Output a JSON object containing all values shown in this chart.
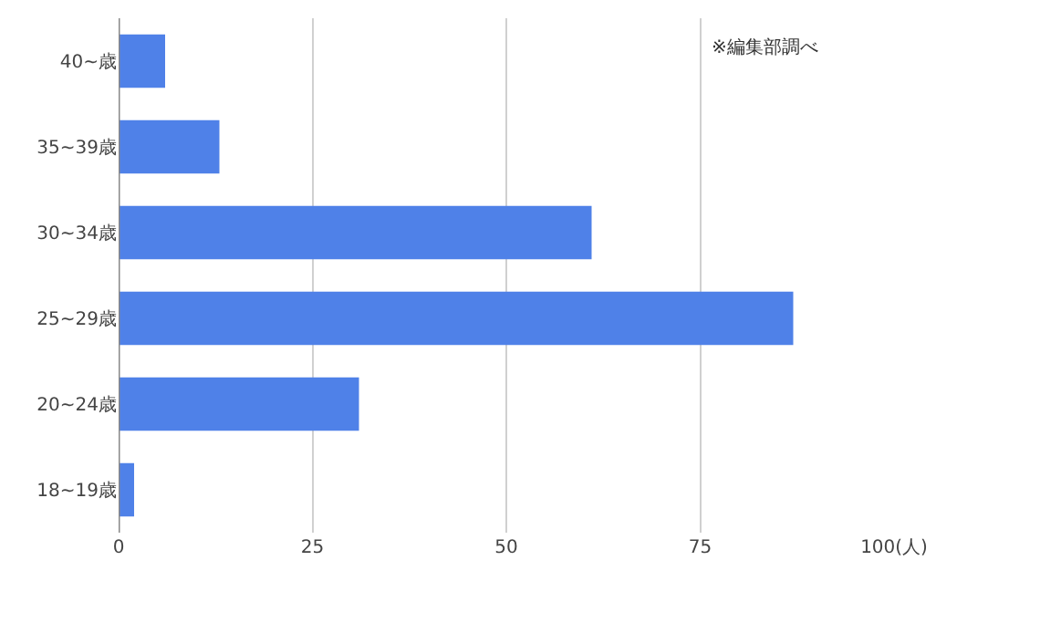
{
  "chart_data": {
    "type": "bar",
    "orientation": "horizontal",
    "categories": [
      "40~歳",
      "35~39歳",
      "30~34歳",
      "25~29歳",
      "20~24歳",
      "18~19歳"
    ],
    "values": [
      6,
      13,
      61,
      87,
      31,
      2
    ],
    "color": "#4f81e8",
    "xlim": [
      0,
      100
    ],
    "xticks": [
      0,
      25,
      50,
      75,
      {
        "value": 100,
        "label": "100(人)"
      }
    ],
    "grid": "x",
    "annotations": [
      "※編集部調べ"
    ]
  }
}
